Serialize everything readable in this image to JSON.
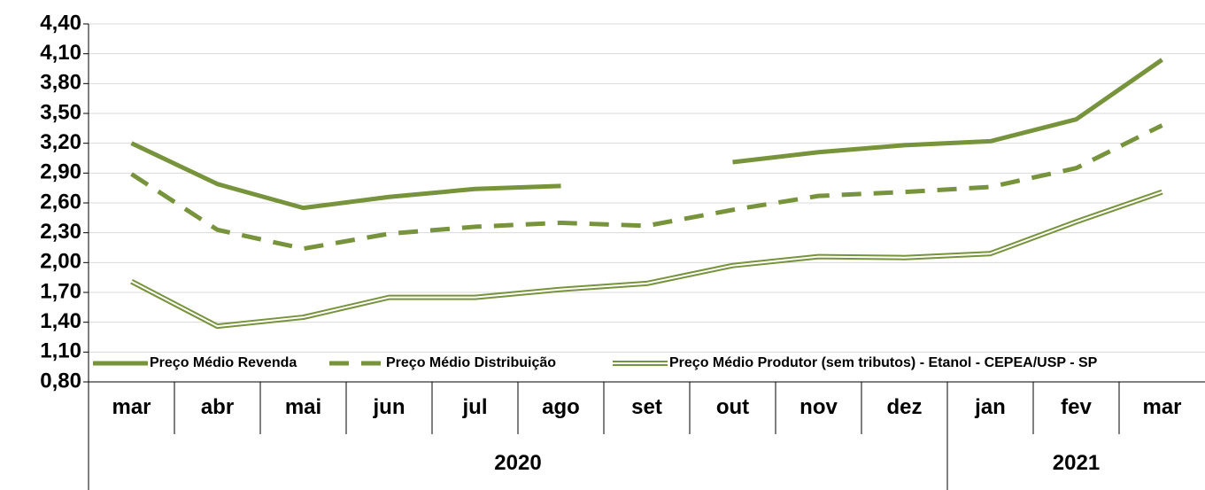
{
  "chart_data": {
    "type": "line",
    "categories": [
      "mar",
      "abr",
      "mai",
      "jun",
      "jul",
      "ago",
      "set",
      "out",
      "nov",
      "dez",
      "jan",
      "fev",
      "mar"
    ],
    "x_groups": [
      {
        "label": "2020",
        "span": 10
      },
      {
        "label": "2021",
        "span": 3
      }
    ],
    "series": [
      {
        "name": "Preço Médio Revenda",
        "color": "#77933c",
        "line_style": "solid",
        "values": [
          3.2,
          2.79,
          2.55,
          2.66,
          2.74,
          2.77,
          null,
          3.01,
          3.11,
          3.18,
          3.22,
          3.44,
          4.04
        ]
      },
      {
        "name": "Preço Médio Distribuição",
        "color": "#77933c",
        "line_style": "dashed",
        "values": [
          2.89,
          2.33,
          2.14,
          2.29,
          2.36,
          2.4,
          2.37,
          2.53,
          2.67,
          2.71,
          2.76,
          2.95,
          3.38
        ]
      },
      {
        "name": "Preço Médio Produtor (sem tributos) - Etanol - CEPEA/USP - SP",
        "color": "#77933c",
        "line_style": "double",
        "values": [
          1.81,
          1.36,
          1.45,
          1.65,
          1.65,
          1.73,
          1.79,
          1.97,
          2.06,
          2.05,
          2.09,
          2.41,
          2.71
        ]
      }
    ],
    "ylim": [
      0.8,
      4.4
    ],
    "yticks": [
      {
        "value": 0.8,
        "label": "0,80"
      },
      {
        "value": 1.1,
        "label": "1,10"
      },
      {
        "value": 1.4,
        "label": "1,40"
      },
      {
        "value": 1.7,
        "label": "1,70"
      },
      {
        "value": 2.0,
        "label": "2,00"
      },
      {
        "value": 2.3,
        "label": "2,30"
      },
      {
        "value": 2.6,
        "label": "2,60"
      },
      {
        "value": 2.9,
        "label": "2,90"
      },
      {
        "value": 3.2,
        "label": "3,20"
      },
      {
        "value": 3.5,
        "label": "3,50"
      },
      {
        "value": 3.8,
        "label": "3,80"
      },
      {
        "value": 4.1,
        "label": "4,10"
      },
      {
        "value": 4.4,
        "label": "4,40"
      }
    ],
    "grid": true,
    "legend": "bottom"
  }
}
